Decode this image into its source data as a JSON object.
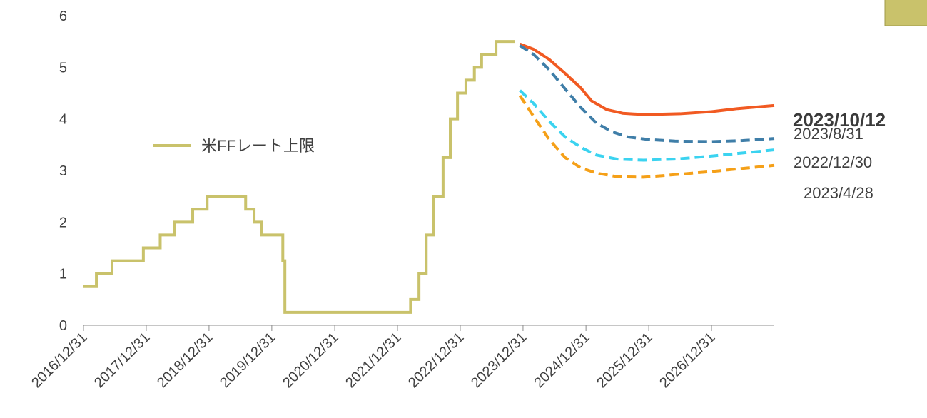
{
  "chart_data": {
    "type": "line",
    "title": "",
    "xlabel": "",
    "ylabel": "",
    "ylim": [
      0,
      6
    ],
    "y_ticks": [
      0,
      1,
      2,
      3,
      4,
      5,
      6
    ],
    "x_tick_labels": [
      "2016/12/31",
      "2017/12/31",
      "2018/12/31",
      "2019/12/31",
      "2020/12/31",
      "2021/12/31",
      "2022/12/31",
      "2023/12/31",
      "2024/12/31",
      "2025/12/31",
      "2026/12/31"
    ],
    "x_range": [
      "2016/12/31",
      "2027/12/31"
    ],
    "grid": false,
    "legend": {
      "position": "left-middle",
      "entries": [
        {
          "label": "米FFレート上限",
          "color": "#c9c26b"
        }
      ]
    },
    "series": [
      {
        "name": "米FFレート上限",
        "color": "#c9c26b",
        "style": "solid-step",
        "points": [
          [
            "2016/12/31",
            0.75
          ],
          [
            "2017/03/16",
            1.0
          ],
          [
            "2017/06/15",
            1.25
          ],
          [
            "2017/12/14",
            1.5
          ],
          [
            "2018/03/22",
            1.75
          ],
          [
            "2018/06/14",
            2.0
          ],
          [
            "2018/09/27",
            2.25
          ],
          [
            "2018/12/20",
            2.5
          ],
          [
            "2019/08/01",
            2.25
          ],
          [
            "2019/09/19",
            2.0
          ],
          [
            "2019/10/31",
            1.75
          ],
          [
            "2020/03/04",
            1.25
          ],
          [
            "2020/03/16",
            0.25
          ],
          [
            "2022/03/17",
            0.5
          ],
          [
            "2022/05/05",
            1.0
          ],
          [
            "2022/06/16",
            1.75
          ],
          [
            "2022/07/28",
            2.5
          ],
          [
            "2022/09/22",
            3.25
          ],
          [
            "2022/11/03",
            4.0
          ],
          [
            "2022/12/15",
            4.5
          ],
          [
            "2023/02/02",
            4.75
          ],
          [
            "2023/03/23",
            5.0
          ],
          [
            "2023/05/04",
            5.25
          ],
          [
            "2023/07/27",
            5.5
          ],
          [
            "2023/10/12",
            5.5
          ]
        ]
      },
      {
        "name": "2023/10/12",
        "color": "#f15a22",
        "style": "solid",
        "points": [
          [
            "2023/12/13",
            5.45
          ],
          [
            "2024/03/01",
            5.35
          ],
          [
            "2024/06/01",
            5.15
          ],
          [
            "2024/09/01",
            4.88
          ],
          [
            "2024/12/01",
            4.6
          ],
          [
            "2025/02/01",
            4.35
          ],
          [
            "2025/05/01",
            4.18
          ],
          [
            "2025/08/01",
            4.11
          ],
          [
            "2025/11/01",
            4.09
          ],
          [
            "2026/03/01",
            4.09
          ],
          [
            "2026/07/01",
            4.1
          ],
          [
            "2027/01/01",
            4.14
          ],
          [
            "2027/06/01",
            4.2
          ],
          [
            "2027/12/31",
            4.26
          ]
        ]
      },
      {
        "name": "2023/8/31",
        "color": "#3f7ea8",
        "style": "dashed",
        "points": [
          [
            "2023/12/13",
            5.42
          ],
          [
            "2024/03/01",
            5.25
          ],
          [
            "2024/06/01",
            4.95
          ],
          [
            "2024/09/01",
            4.58
          ],
          [
            "2024/12/01",
            4.22
          ],
          [
            "2025/03/01",
            3.92
          ],
          [
            "2025/06/01",
            3.75
          ],
          [
            "2025/09/01",
            3.65
          ],
          [
            "2026/01/01",
            3.6
          ],
          [
            "2026/06/01",
            3.57
          ],
          [
            "2027/01/01",
            3.56
          ],
          [
            "2027/07/01",
            3.58
          ],
          [
            "2027/12/31",
            3.62
          ]
        ]
      },
      {
        "name": "2022/12/30",
        "color": "#3bd3f0",
        "style": "dashed",
        "points": [
          [
            "2023/12/13",
            4.55
          ],
          [
            "2024/03/01",
            4.3
          ],
          [
            "2024/06/01",
            3.95
          ],
          [
            "2024/09/01",
            3.65
          ],
          [
            "2024/12/01",
            3.45
          ],
          [
            "2025/03/01",
            3.3
          ],
          [
            "2025/07/01",
            3.22
          ],
          [
            "2025/12/01",
            3.2
          ],
          [
            "2026/06/01",
            3.22
          ],
          [
            "2027/01/01",
            3.28
          ],
          [
            "2027/07/01",
            3.34
          ],
          [
            "2027/12/31",
            3.4
          ]
        ]
      },
      {
        "name": "2023/4/28",
        "color": "#f5a018",
        "style": "dashed",
        "points": [
          [
            "2023/12/13",
            4.45
          ],
          [
            "2024/03/01",
            4.05
          ],
          [
            "2024/06/01",
            3.6
          ],
          [
            "2024/09/01",
            3.25
          ],
          [
            "2024/12/01",
            3.05
          ],
          [
            "2025/03/01",
            2.95
          ],
          [
            "2025/07/01",
            2.88
          ],
          [
            "2025/12/01",
            2.87
          ],
          [
            "2026/06/01",
            2.92
          ],
          [
            "2027/01/01",
            2.98
          ],
          [
            "2027/07/01",
            3.04
          ],
          [
            "2027/12/31",
            3.1
          ]
        ]
      }
    ],
    "series_labels": [
      "2023/10/12",
      "2023/8/31",
      "2022/12/30",
      "2023/4/28"
    ],
    "legend_swatch_top_right_color": "#c9c26b"
  }
}
